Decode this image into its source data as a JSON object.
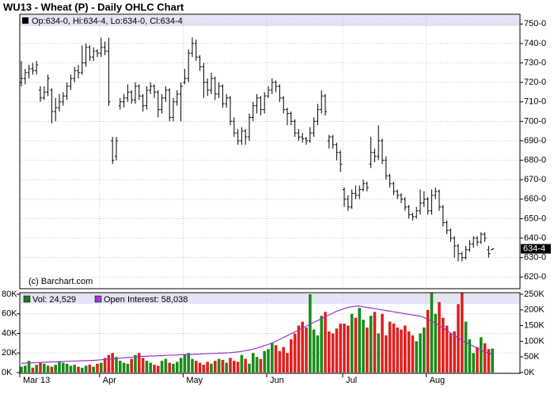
{
  "chart_data": [
    {
      "type": "ohlc",
      "title": "WU13 - Wheat (P) - Daily OHLC Chart",
      "legend": "Op:634-0, Hi:634-4, Lo:634-0, Cl:634-4",
      "last_label": "634-4",
      "credit": "(c) Barchart.com",
      "color": "#000000",
      "grid": true,
      "open": [
        720,
        722,
        725,
        727,
        726,
        716,
        712,
        715,
        716,
        705,
        707,
        710,
        713,
        718,
        722,
        726,
        725,
        730,
        738,
        733,
        736,
        735,
        738,
        736,
        690,
        682,
        708,
        710,
        712,
        715,
        711,
        718,
        713,
        708,
        716,
        718,
        715,
        706,
        712,
        716,
        702,
        710,
        714,
        720,
        722,
        735,
        740,
        733,
        728,
        720,
        716,
        722,
        714,
        718,
        709,
        712,
        700,
        694,
        690,
        695,
        692,
        702,
        708,
        712,
        706,
        713,
        716,
        720,
        718,
        712,
        706,
        704,
        700,
        694,
        692,
        691,
        690,
        694,
        700,
        706,
        713,
        690,
        692,
        688,
        684,
        665,
        660,
        656,
        663,
        662,
        665,
        668,
        678,
        684,
        682,
        690,
        680,
        672,
        668,
        664,
        662,
        660,
        656,
        652,
        651,
        654,
        658,
        660,
        654,
        662,
        664,
        656,
        648,
        644,
        640,
        636,
        632,
        630,
        634,
        637,
        640,
        638,
        642,
        634,
        634
      ],
      "high": [
        731,
        727,
        729,
        730,
        731,
        718,
        718,
        724,
        717,
        712,
        714,
        715,
        720,
        724,
        728,
        729,
        739,
        740,
        739,
        738,
        737,
        743,
        741,
        743,
        692,
        692,
        712,
        714,
        719,
        716,
        720,
        719,
        714,
        718,
        720,
        719,
        716,
        714,
        718,
        717,
        712,
        716,
        720,
        727,
        737,
        743,
        742,
        734,
        730,
        722,
        725,
        723,
        720,
        719,
        714,
        713,
        702,
        696,
        697,
        696,
        704,
        710,
        714,
        713,
        715,
        718,
        722,
        721,
        719,
        713,
        707,
        705,
        701,
        696,
        694,
        692,
        697,
        702,
        709,
        716,
        714,
        693,
        693,
        689,
        685,
        666,
        662,
        665,
        667,
        667,
        670,
        669,
        692,
        686,
        698,
        691,
        682,
        673,
        669,
        665,
        663,
        661,
        657,
        653,
        656,
        665,
        664,
        661,
        665,
        666,
        665,
        657,
        649,
        645,
        641,
        637,
        633,
        636,
        639,
        641,
        641,
        643,
        643,
        636,
        634.5
      ],
      "low": [
        718,
        719,
        722,
        724,
        724,
        710,
        711,
        713,
        699,
        700,
        705,
        708,
        711,
        716,
        720,
        722,
        724,
        728,
        731,
        731,
        733,
        733,
        734,
        708,
        678,
        680,
        706,
        707,
        710,
        709,
        709,
        711,
        705,
        706,
        714,
        712,
        702,
        704,
        710,
        700,
        700,
        708,
        700,
        719,
        720,
        733,
        731,
        726,
        712,
        713,
        714,
        711,
        712,
        707,
        707,
        698,
        692,
        688,
        688,
        688,
        690,
        700,
        704,
        703,
        704,
        712,
        714,
        715,
        710,
        704,
        698,
        698,
        692,
        690,
        689,
        688,
        689,
        692,
        698,
        704,
        703,
        686,
        686,
        680,
        674,
        656,
        654,
        655,
        660,
        660,
        664,
        664,
        676,
        679,
        680,
        678,
        670,
        666,
        662,
        660,
        658,
        654,
        650,
        649,
        650,
        652,
        656,
        652,
        652,
        660,
        654,
        646,
        642,
        638,
        630,
        628,
        628,
        629,
        633,
        635,
        636,
        637,
        638,
        630,
        634
      ],
      "close": [
        722,
        725,
        727,
        726,
        729,
        712,
        715,
        722,
        705,
        707,
        710,
        713,
        718,
        722,
        726,
        725,
        730,
        738,
        733,
        736,
        735,
        738,
        736,
        710,
        680,
        690,
        710,
        712,
        715,
        711,
        718,
        713,
        708,
        716,
        718,
        715,
        706,
        712,
        716,
        702,
        710,
        714,
        718,
        722,
        735,
        740,
        733,
        728,
        720,
        716,
        722,
        714,
        718,
        709,
        712,
        700,
        694,
        690,
        695,
        692,
        702,
        708,
        712,
        706,
        713,
        716,
        720,
        718,
        712,
        706,
        704,
        700,
        694,
        692,
        691,
        690,
        694,
        700,
        706,
        713,
        705,
        692,
        688,
        684,
        678,
        660,
        656,
        663,
        662,
        665,
        668,
        666,
        684,
        682,
        690,
        680,
        672,
        668,
        664,
        662,
        660,
        656,
        652,
        651,
        654,
        658,
        660,
        654,
        662,
        664,
        656,
        648,
        644,
        640,
        636,
        632,
        630,
        634,
        637,
        640,
        638,
        642,
        640,
        632,
        634.5
      ],
      "ylim": [
        614,
        755
      ],
      "yticks": [
        {
          "value": 620,
          "label": "620-0"
        },
        {
          "value": 630,
          "label": "630-0"
        },
        {
          "value": 640,
          "label": "640-0"
        },
        {
          "value": 650,
          "label": "650-0"
        },
        {
          "value": 660,
          "label": "660-0"
        },
        {
          "value": 670,
          "label": "670-0"
        },
        {
          "value": 680,
          "label": "680-0"
        },
        {
          "value": 690,
          "label": "690-0"
        },
        {
          "value": 700,
          "label": "700-0"
        },
        {
          "value": 710,
          "label": "710-0"
        },
        {
          "value": 720,
          "label": "720-0"
        },
        {
          "value": 730,
          "label": "730-0"
        },
        {
          "value": 740,
          "label": "740-0"
        },
        {
          "value": 750,
          "label": "750-0"
        }
      ]
    },
    {
      "type": "bar",
      "categories": [
        "Mar 13",
        null,
        null,
        null,
        null,
        null,
        null,
        null,
        null,
        null,
        null,
        null,
        null,
        null,
        null,
        null,
        null,
        null,
        null,
        null,
        null,
        "Apr",
        null,
        null,
        null,
        null,
        null,
        null,
        null,
        null,
        null,
        null,
        null,
        null,
        null,
        null,
        null,
        null,
        null,
        null,
        null,
        null,
        null,
        "May",
        null,
        null,
        null,
        null,
        null,
        null,
        null,
        null,
        null,
        null,
        null,
        null,
        null,
        null,
        null,
        null,
        null,
        null,
        null,
        null,
        null,
        "Jun",
        null,
        null,
        null,
        null,
        null,
        null,
        null,
        null,
        null,
        null,
        null,
        null,
        null,
        null,
        null,
        null,
        null,
        null,
        null,
        "Jul",
        null,
        null,
        null,
        null,
        null,
        null,
        null,
        null,
        null,
        null,
        null,
        null,
        null,
        null,
        null,
        null,
        null,
        null,
        null,
        null,
        null,
        "Aug",
        null,
        null,
        null,
        null,
        null,
        null,
        null,
        null,
        null,
        null,
        null,
        null,
        null,
        null,
        null,
        null,
        null
      ],
      "series": [
        {
          "name": "Vol: 24,529",
          "color": "#1a7a1a",
          "up_color": "#1a8c1a",
          "down_color": "#e02020",
          "values": [
            6000,
            7000,
            12000,
            5000,
            8000,
            10000,
            9000,
            7000,
            6000,
            8000,
            11000,
            10000,
            9000,
            7000,
            8000,
            6000,
            5000,
            7000,
            8000,
            6000,
            9000,
            10000,
            15000,
            18000,
            20000,
            16000,
            12000,
            10000,
            9000,
            14000,
            18000,
            20000,
            15000,
            12000,
            10000,
            8000,
            7000,
            12000,
            14000,
            10000,
            9000,
            11000,
            15000,
            18000,
            20000,
            14000,
            12000,
            10000,
            8000,
            11000,
            9000,
            12000,
            14000,
            13000,
            10000,
            15000,
            12000,
            11000,
            18000,
            14000,
            9000,
            20000,
            16000,
            14000,
            22000,
            24000,
            30000,
            28000,
            22000,
            26000,
            20000,
            34000,
            40000,
            48000,
            52000,
            46000,
            80000,
            44000,
            38000,
            58000,
            62000,
            42000,
            40000,
            45000,
            50000,
            50000,
            48000,
            60000,
            56000,
            66000,
            54000,
            46000,
            58000,
            62000,
            40000,
            60000,
            38000,
            52000,
            50000,
            46000,
            44000,
            48000,
            42000,
            38000,
            32000,
            40000,
            46000,
            64000,
            84000,
            60000,
            72000,
            56000,
            48000,
            40000,
            42000,
            70000,
            82000,
            52000,
            34000,
            20000,
            26000,
            36000,
            30000,
            24000,
            24529
          ]
        },
        {
          "name": "Open Interest: 58,038",
          "color": "#9933cc",
          "axis": "y2",
          "values": [
            30000,
            30000,
            31000,
            31000,
            32000,
            32000,
            33000,
            33000,
            34000,
            34000,
            35000,
            35000,
            36000,
            36000,
            37000,
            37000,
            38000,
            38000,
            39000,
            39000,
            40000,
            41000,
            42000,
            43000,
            44000,
            45000,
            46000,
            47000,
            48000,
            49000,
            50000,
            51000,
            52000,
            52000,
            53000,
            53000,
            54000,
            54000,
            55000,
            55000,
            56000,
            56000,
            57000,
            57000,
            58000,
            58000,
            59000,
            59000,
            60000,
            60000,
            61000,
            61000,
            62000,
            62000,
            63000,
            64000,
            65000,
            66000,
            68000,
            70000,
            72000,
            75000,
            78000,
            82000,
            86000,
            90000,
            95000,
            100000,
            106000,
            112000,
            118000,
            124000,
            130000,
            136000,
            142000,
            148000,
            154000,
            160000,
            166000,
            172000,
            178000,
            184000,
            190000,
            196000,
            200000,
            204000,
            208000,
            210000,
            212000,
            212000,
            210000,
            208000,
            206000,
            204000,
            202000,
            200000,
            198000,
            196000,
            194000,
            192000,
            190000,
            188000,
            186000,
            184000,
            182000,
            180000,
            176000,
            170000,
            164000,
            158000,
            150000,
            142000,
            134000,
            126000,
            118000,
            110000,
            102000,
            96000,
            90000,
            84000,
            78000,
            72000,
            66000,
            62000,
            58038
          ]
        }
      ],
      "ylim": [
        0,
        80000
      ],
      "yticks": [
        {
          "value": 0,
          "label": "0K"
        },
        {
          "value": 20000,
          "label": "20K"
        },
        {
          "value": 40000,
          "label": "40K"
        },
        {
          "value": 60000,
          "label": "60K"
        },
        {
          "value": 80000,
          "label": "80K"
        }
      ],
      "y2lim": [
        0,
        250000
      ],
      "y2ticks": [
        {
          "value": 0,
          "label": "0K"
        },
        {
          "value": 50000,
          "label": "50K"
        },
        {
          "value": 100000,
          "label": "100K"
        },
        {
          "value": 150000,
          "label": "150K"
        },
        {
          "value": 200000,
          "label": "200K"
        },
        {
          "value": 250000,
          "label": "250K"
        }
      ],
      "grid": true
    }
  ]
}
